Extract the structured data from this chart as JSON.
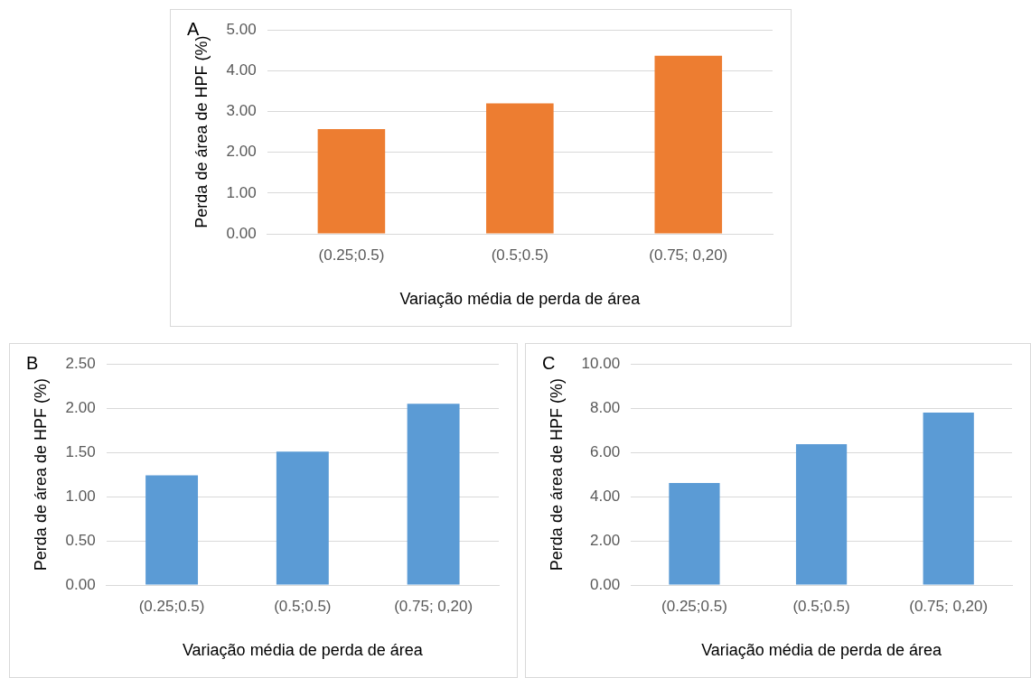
{
  "chart_data": [
    {
      "type": "bar",
      "annotations": [
        "A"
      ],
      "categories": [
        "(0.25;0.5)",
        "(0.5;0.5)",
        "(0.75; 0,20)"
      ],
      "values": [
        2.57,
        3.2,
        4.37
      ],
      "color": "#ed7d31",
      "ylim": [
        0,
        5
      ],
      "yticks": [
        {
          "value": 0,
          "label": "0.00"
        },
        {
          "value": 1,
          "label": "1.00"
        },
        {
          "value": 2,
          "label": "2.00"
        },
        {
          "value": 3,
          "label": "3.00"
        },
        {
          "value": 4,
          "label": "4.00"
        },
        {
          "value": 5,
          "label": "5.00"
        }
      ],
      "xlabel": "Variação média de perda de área",
      "ylabel": "Perda de área de HPF (%)",
      "grid": "y"
    },
    {
      "type": "bar",
      "annotations": [
        "B"
      ],
      "categories": [
        "(0.25;0.5)",
        "(0.5;0.5)",
        "(0.75; 0,20)"
      ],
      "values": [
        1.24,
        1.51,
        2.05
      ],
      "color": "#5b9bd5",
      "ylim": [
        0,
        2.5
      ],
      "yticks": [
        {
          "value": 0,
          "label": "0.00"
        },
        {
          "value": 0.5,
          "label": "0.50"
        },
        {
          "value": 1,
          "label": "1.00"
        },
        {
          "value": 1.5,
          "label": "1.50"
        },
        {
          "value": 2,
          "label": "2.00"
        },
        {
          "value": 2.5,
          "label": "2.50"
        }
      ],
      "xlabel": "Variação média de perda de área",
      "ylabel": "Perda de área de HPF (%)",
      "grid": "y"
    },
    {
      "type": "bar",
      "annotations": [
        "C"
      ],
      "categories": [
        "(0.25;0.5)",
        "(0.5;0.5)",
        "(0.75; 0,20)"
      ],
      "values": [
        4.62,
        6.37,
        7.8
      ],
      "color": "#5b9bd5",
      "ylim": [
        0,
        10
      ],
      "yticks": [
        {
          "value": 0,
          "label": "0.00"
        },
        {
          "value": 2,
          "label": "2.00"
        },
        {
          "value": 4,
          "label": "4.00"
        },
        {
          "value": 6,
          "label": "6.00"
        },
        {
          "value": 8,
          "label": "8.00"
        },
        {
          "value": 10,
          "label": "10.00"
        }
      ],
      "xlabel": "Variação média de perda de área",
      "ylabel": "Perda de área de HPF (%)",
      "grid": "y"
    }
  ]
}
